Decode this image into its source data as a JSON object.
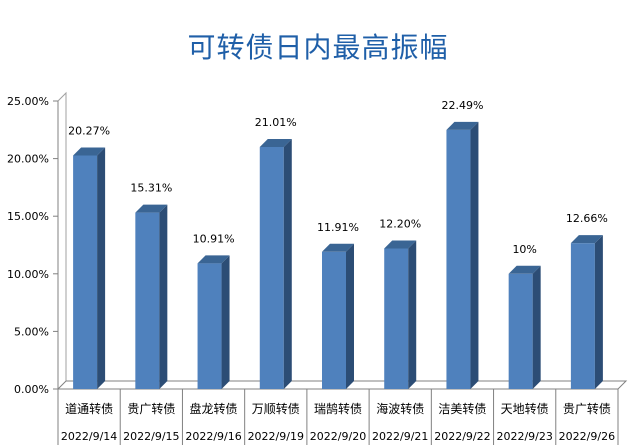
{
  "chart_data": {
    "type": "bar",
    "title": "可转债日内最高振幅",
    "categories": [
      "道通转债",
      "贵广转债",
      "盘龙转债",
      "万顺转债",
      "瑞鹄转债",
      "海波转债",
      "洁美转债",
      "天地转债",
      "贵广转债"
    ],
    "dates": [
      "2022/9/14",
      "2022/9/15",
      "2022/9/16",
      "2022/9/19",
      "2022/9/20",
      "2022/9/21",
      "2022/9/22",
      "2022/9/23",
      "2022/9/26"
    ],
    "values": [
      20.27,
      15.31,
      10.91,
      21.01,
      11.91,
      12.2,
      22.49,
      10.0,
      12.66
    ],
    "data_labels": [
      "20.27%",
      "15.31%",
      "10.91%",
      "21.01%",
      "11.91%",
      "12.20%",
      "22.49%",
      "10%",
      "12.66%"
    ],
    "y_ticks": [
      "0.00%",
      "5.00%",
      "10.00%",
      "15.00%",
      "20.00%",
      "25.00%"
    ],
    "ylim": [
      0,
      25
    ],
    "grid": false,
    "bar_color": "#4f81bd",
    "bar_side_color": "#2c4d75",
    "bar_top_color": "#3a6594",
    "title_color": "#1f5fa8"
  }
}
